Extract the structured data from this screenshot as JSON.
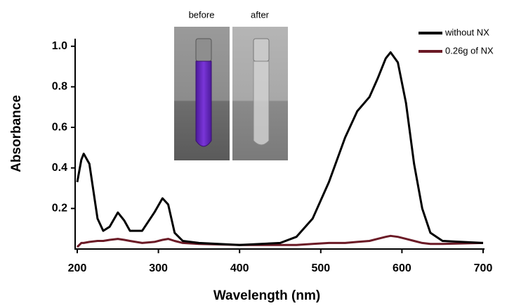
{
  "chart_data": {
    "type": "line",
    "x_label": "Wavelength (nm)",
    "y_label": "Absorbance",
    "annotations": [
      "before",
      "after"
    ],
    "x": [
      200,
      205,
      208,
      215,
      225,
      232,
      240,
      250,
      258,
      265,
      280,
      295,
      305,
      312,
      320,
      330,
      350,
      400,
      450,
      470,
      490,
      510,
      530,
      545,
      560,
      570,
      580,
      586,
      595,
      605,
      615,
      625,
      635,
      650,
      700
    ],
    "series": [
      {
        "name": "without NX",
        "color": "#000000",
        "values": [
          0.33,
          0.44,
          0.47,
          0.42,
          0.15,
          0.09,
          0.11,
          0.18,
          0.14,
          0.09,
          0.09,
          0.18,
          0.25,
          0.22,
          0.08,
          0.04,
          0.03,
          0.02,
          0.03,
          0.06,
          0.15,
          0.33,
          0.55,
          0.68,
          0.75,
          0.84,
          0.94,
          0.97,
          0.92,
          0.72,
          0.42,
          0.2,
          0.08,
          0.04,
          0.03
        ]
      },
      {
        "name": "0.26g of NX",
        "color": "#6b1a26",
        "values": [
          0.01,
          0.03,
          0.03,
          0.035,
          0.04,
          0.04,
          0.045,
          0.05,
          0.045,
          0.04,
          0.03,
          0.035,
          0.045,
          0.05,
          0.04,
          0.03,
          0.025,
          0.02,
          0.02,
          0.02,
          0.025,
          0.03,
          0.03,
          0.035,
          0.04,
          0.05,
          0.06,
          0.065,
          0.06,
          0.05,
          0.04,
          0.03,
          0.025,
          0.025,
          0.03
        ]
      }
    ],
    "xlim": [
      200,
      700
    ],
    "xticks": [
      200,
      300,
      400,
      500,
      600,
      700
    ],
    "ylim": [
      0,
      1.02
    ],
    "yticks": [
      0.2,
      0.4,
      0.6,
      0.8,
      {
        "value": 1,
        "label": "1.0"
      }
    ],
    "legend": "upper right"
  }
}
